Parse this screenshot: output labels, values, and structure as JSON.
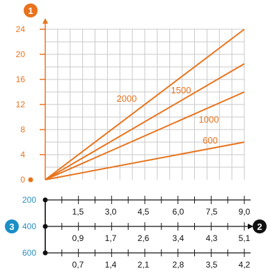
{
  "colors": {
    "orange": "#E8731C",
    "grid": "#c9c9c9",
    "blue": "#2a8fc1",
    "axis": "#111111",
    "badge_blue": "#1a8ec6"
  },
  "badges": {
    "top": "1",
    "left": "3",
    "right": "2"
  },
  "chart_data": {
    "type": "line",
    "ylim": [
      0,
      24
    ],
    "yticks": [
      "0",
      "4",
      "8",
      "12",
      "16",
      "20",
      "24"
    ],
    "xlim": [
      0,
      9.6
    ],
    "series": [
      {
        "name": "2000",
        "x": [
          0,
          9.6
        ],
        "y": [
          0,
          24
        ]
      },
      {
        "name": "1500",
        "x": [
          0,
          9.6
        ],
        "y": [
          0,
          18.5
        ]
      },
      {
        "name": "1000",
        "x": [
          0,
          9.6
        ],
        "y": [
          0,
          14
        ]
      },
      {
        "name": "600",
        "x": [
          0,
          9.6
        ],
        "y": [
          0,
          6
        ]
      }
    ],
    "scales": [
      {
        "label": "200",
        "ticks": [
          "1,5",
          "3,0",
          "4,5",
          "6,0",
          "7,5",
          "9,0"
        ]
      },
      {
        "label": "400",
        "ticks": [
          "0,9",
          "1,7",
          "2,6",
          "3,4",
          "4,3",
          "5,1"
        ]
      },
      {
        "label": "600",
        "ticks": [
          "0,7",
          "1,4",
          "2,1",
          "2,8",
          "3,5",
          "4,2"
        ]
      }
    ],
    "grid": true
  }
}
